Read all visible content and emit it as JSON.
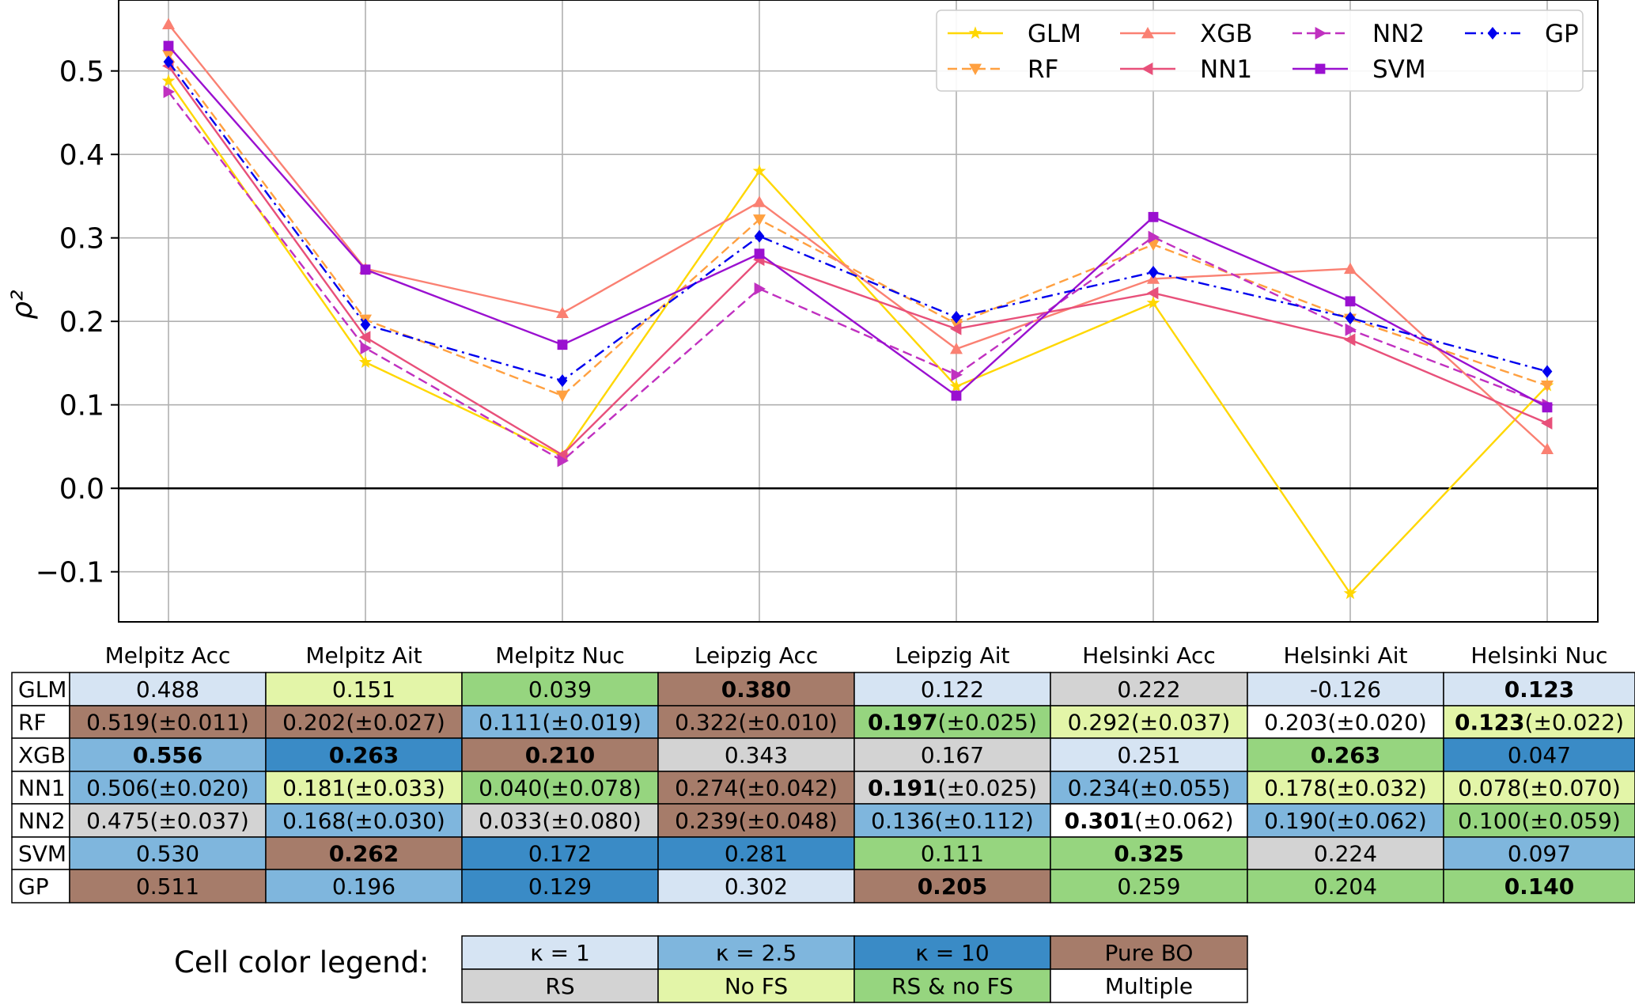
{
  "chart_data": {
    "type": "line",
    "ylabel": "ρ²",
    "ylim": [
      -0.16,
      0.585
    ],
    "yticks": [
      {
        "value": 0.5,
        "label": "0.5"
      },
      {
        "value": 0.4,
        "label": "0.4"
      },
      {
        "value": 0.3,
        "label": "0.3"
      },
      {
        "value": 0.2,
        "label": "0.2"
      },
      {
        "value": 0.1,
        "label": "0.1"
      },
      {
        "value": 0.0,
        "label": "0.0"
      },
      {
        "value": -0.1,
        "label": "−0.1"
      }
    ],
    "grid": true,
    "legend_position": "top-right",
    "categories": [
      "Melpitz Acc",
      "Melpitz Ait",
      "Melpitz Nuc",
      "Leipzig Acc",
      "Leipzig Ait",
      "Helsinki Acc",
      "Helsinki Ait",
      "Helsinki Nuc"
    ],
    "series": [
      {
        "name": "GLM",
        "color": "#FFD700",
        "dash": "solid",
        "marker": "star",
        "values": [
          0.488,
          0.151,
          0.039,
          0.38,
          0.122,
          0.222,
          -0.126,
          0.123
        ]
      },
      {
        "name": "RF",
        "color": "#FFA040",
        "dash": "dashed",
        "marker": "triangle-down",
        "values": [
          0.519,
          0.202,
          0.111,
          0.322,
          0.197,
          0.292,
          0.203,
          0.123
        ]
      },
      {
        "name": "XGB",
        "color": "#FA8072",
        "dash": "solid",
        "marker": "triangle-up",
        "values": [
          0.556,
          0.263,
          0.21,
          0.343,
          0.167,
          0.251,
          0.263,
          0.047
        ]
      },
      {
        "name": "NN1",
        "color": "#E8507A",
        "dash": "solid",
        "marker": "triangle-left",
        "values": [
          0.506,
          0.181,
          0.04,
          0.274,
          0.191,
          0.234,
          0.178,
          0.078
        ]
      },
      {
        "name": "NN2",
        "color": "#C030C0",
        "dash": "dashed",
        "marker": "triangle-right",
        "values": [
          0.475,
          0.168,
          0.033,
          0.239,
          0.136,
          0.301,
          0.19,
          0.1
        ]
      },
      {
        "name": "SVM",
        "color": "#9A10D0",
        "dash": "solid",
        "marker": "square",
        "values": [
          0.53,
          0.262,
          0.172,
          0.281,
          0.111,
          0.325,
          0.224,
          0.097
        ]
      },
      {
        "name": "GP",
        "color": "#0000EE",
        "dash": "dashdot",
        "marker": "diamond",
        "values": [
          0.511,
          0.196,
          0.129,
          0.302,
          0.205,
          0.259,
          0.204,
          0.14
        ]
      }
    ],
    "legend_order": [
      "GLM",
      "XGB",
      "NN2",
      "GP",
      "RF",
      "NN1",
      "SVM"
    ]
  },
  "table": {
    "columns": [
      "Melpitz Acc",
      "Melpitz Ait",
      "Melpitz Nuc",
      "Leipzig Acc",
      "Leipzig Ait",
      "Helsinki Acc",
      "Helsinki Ait",
      "Helsinki Nuc"
    ],
    "rows": [
      {
        "label": "GLM",
        "cells": [
          {
            "v": "0.488",
            "c": "k1"
          },
          {
            "v": "0.151",
            "c": "nofs"
          },
          {
            "v": "0.039",
            "c": "rsnofs"
          },
          {
            "v": "0.380",
            "b": true,
            "c": "bo"
          },
          {
            "v": "0.122",
            "c": "k1"
          },
          {
            "v": "0.222",
            "c": "rs"
          },
          {
            "v": "-0.126",
            "c": "k1"
          },
          {
            "v": "0.123",
            "b": true,
            "c": "k1"
          }
        ]
      },
      {
        "label": "RF",
        "cells": [
          {
            "v": "0.519",
            "e": "(±0.011)",
            "c": "bo"
          },
          {
            "v": "0.202",
            "e": "(±0.027)",
            "c": "bo"
          },
          {
            "v": "0.111",
            "e": "(±0.019)",
            "c": "k25"
          },
          {
            "v": "0.322",
            "e": "(±0.010)",
            "c": "bo"
          },
          {
            "v": "0.197",
            "e": "(±0.025)",
            "b": true,
            "c": "rsnofs"
          },
          {
            "v": "0.292",
            "e": "(±0.037)",
            "c": "nofs"
          },
          {
            "v": "0.203",
            "e": "(±0.020)",
            "c": "multi"
          },
          {
            "v": "0.123",
            "e": "(±0.022)",
            "b": true,
            "c": "nofs"
          }
        ]
      },
      {
        "label": "XGB",
        "cells": [
          {
            "v": "0.556",
            "b": true,
            "c": "k25"
          },
          {
            "v": "0.263",
            "b": true,
            "c": "k10"
          },
          {
            "v": "0.210",
            "b": true,
            "c": "bo"
          },
          {
            "v": "0.343",
            "c": "rs"
          },
          {
            "v": "0.167",
            "c": "rs"
          },
          {
            "v": "0.251",
            "c": "k1"
          },
          {
            "v": "0.263",
            "b": true,
            "c": "rsnofs"
          },
          {
            "v": "0.047",
            "c": "k10"
          }
        ]
      },
      {
        "label": "NN1",
        "cells": [
          {
            "v": "0.506",
            "e": "(±0.020)",
            "c": "k25"
          },
          {
            "v": "0.181",
            "e": "(±0.033)",
            "c": "nofs"
          },
          {
            "v": "0.040",
            "e": "(±0.078)",
            "c": "rsnofs"
          },
          {
            "v": "0.274",
            "e": "(±0.042)",
            "c": "bo"
          },
          {
            "v": "0.191",
            "e": "(±0.025)",
            "b": true,
            "c": "rs"
          },
          {
            "v": "0.234",
            "e": "(±0.055)",
            "c": "k25"
          },
          {
            "v": "0.178",
            "e": "(±0.032)",
            "c": "nofs"
          },
          {
            "v": "0.078",
            "e": "(±0.070)",
            "c": "nofs"
          }
        ]
      },
      {
        "label": "NN2",
        "cells": [
          {
            "v": "0.475",
            "e": "(±0.037)",
            "c": "rs"
          },
          {
            "v": "0.168",
            "e": "(±0.030)",
            "c": "k25"
          },
          {
            "v": "0.033",
            "e": "(±0.080)",
            "c": "rs"
          },
          {
            "v": "0.239",
            "e": "(±0.048)",
            "c": "bo"
          },
          {
            "v": "0.136",
            "e": "(±0.112)",
            "c": "k25"
          },
          {
            "v": "0.301",
            "e": "(±0.062)",
            "b": true,
            "c": "multi"
          },
          {
            "v": "0.190",
            "e": "(±0.062)",
            "c": "k25"
          },
          {
            "v": "0.100",
            "e": "(±0.059)",
            "c": "rsnofs"
          }
        ]
      },
      {
        "label": "SVM",
        "cells": [
          {
            "v": "0.530",
            "c": "k25"
          },
          {
            "v": "0.262",
            "b": true,
            "c": "bo"
          },
          {
            "v": "0.172",
            "c": "k10"
          },
          {
            "v": "0.281",
            "c": "k10"
          },
          {
            "v": "0.111",
            "c": "rsnofs"
          },
          {
            "v": "0.325",
            "b": true,
            "c": "rsnofs"
          },
          {
            "v": "0.224",
            "c": "rs"
          },
          {
            "v": "0.097",
            "c": "k25"
          }
        ]
      },
      {
        "label": "GP",
        "cells": [
          {
            "v": "0.511",
            "c": "bo"
          },
          {
            "v": "0.196",
            "c": "k25"
          },
          {
            "v": "0.129",
            "c": "k10"
          },
          {
            "v": "0.302",
            "c": "k1"
          },
          {
            "v": "0.205",
            "b": true,
            "c": "bo"
          },
          {
            "v": "0.259",
            "c": "rsnofs"
          },
          {
            "v": "0.204",
            "c": "rsnofs"
          },
          {
            "v": "0.140",
            "b": true,
            "c": "rsnofs"
          }
        ]
      }
    ]
  },
  "cell_colors": {
    "k1": "#D6E4F3",
    "k25": "#7FB6DD",
    "k10": "#3A8BC6",
    "bo": "#A67C6A",
    "rs": "#D3D3D3",
    "nofs": "#E3F5A8",
    "rsnofs": "#96D57F",
    "multi": "#FFFFFF"
  },
  "color_legend": {
    "caption": "Cell color legend:",
    "rows": [
      [
        {
          "label": "κ = 1",
          "c": "k1"
        },
        {
          "label": "κ = 2.5",
          "c": "k25"
        },
        {
          "label": "κ = 10",
          "c": "k10"
        },
        {
          "label": "Pure BO",
          "c": "bo"
        }
      ],
      [
        {
          "label": "RS",
          "c": "rs"
        },
        {
          "label": "No FS",
          "c": "nofs"
        },
        {
          "label": "RS & no FS",
          "c": "rsnofs"
        },
        {
          "label": "Multiple",
          "c": "multi"
        }
      ]
    ]
  }
}
